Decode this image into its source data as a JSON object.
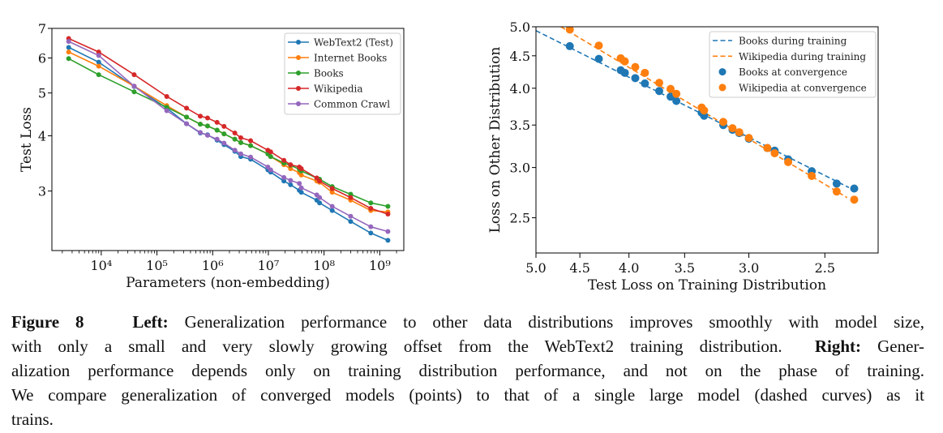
{
  "colors": {
    "blue": "#1f77b4",
    "orange": "#ff7f0e",
    "green": "#2ca02c",
    "red": "#d62728",
    "purple": "#9467bd"
  },
  "chart_data": [
    {
      "type": "line",
      "xlabel": "Parameters (non-embedding)",
      "ylabel": "Test Loss",
      "xscale": "log",
      "yscale": "log",
      "xlim": [
        1300,
        2700000000.0
      ],
      "ylim": [
        2.2,
        7.0
      ],
      "xticks": [
        10000.0,
        100000.0,
        1000000.0,
        10000000.0,
        100000000.0,
        1000000000.0
      ],
      "xtick_labels": [
        "10⁴",
        "10⁵",
        "10⁶",
        "10⁷",
        "10⁸",
        "10⁹"
      ],
      "yticks": [
        3,
        4,
        5,
        6,
        7
      ],
      "ytick_labels": [
        "3",
        "4",
        "5",
        "6",
        "7"
      ],
      "grid": false,
      "legend": "top-right",
      "markers": true,
      "x": [
        2600.0,
        9000.0,
        39000.0,
        150000.0,
        340000.0,
        600000.0,
        810000.0,
        1200000.0,
        1600000.0,
        2500000.0,
        3200000.0,
        4800000.0,
        9800000.0,
        11000000.0,
        19000000.0,
        25000000.0,
        36000000.0,
        39000000.0,
        74000000.0,
        83000000.0,
        140000000.0,
        300000000.0,
        690000000.0,
        1400000000.0
      ],
      "series": [
        {
          "name": "WebText2 (Test)",
          "color": "#1f77b4",
          "values": [
            6.34,
            5.87,
            5.17,
            4.62,
            4.26,
            4.06,
            4.02,
            3.91,
            3.82,
            3.69,
            3.59,
            3.54,
            3.35,
            3.31,
            3.16,
            3.1,
            3.01,
            2.98,
            2.86,
            2.82,
            2.71,
            2.56,
            2.41,
            2.32
          ]
        },
        {
          "name": "Internet Books",
          "color": "#ff7f0e",
          "values": [
            6.19,
            5.75,
            5.18,
            4.68,
            4.41,
            4.25,
            4.21,
            4.12,
            4.04,
            3.93,
            3.86,
            3.8,
            3.64,
            3.59,
            3.44,
            3.37,
            3.3,
            3.26,
            3.16,
            3.14,
            2.98,
            2.86,
            2.71,
            2.69
          ]
        },
        {
          "name": "Books",
          "color": "#2ca02c",
          "values": [
            5.98,
            5.5,
            5.03,
            4.64,
            4.41,
            4.25,
            4.21,
            4.12,
            4.04,
            3.93,
            3.86,
            3.8,
            3.64,
            3.59,
            3.47,
            3.43,
            3.36,
            3.33,
            3.21,
            3.19,
            3.07,
            2.95,
            2.82,
            2.77
          ]
        },
        {
          "name": "Wikipedia",
          "color": "#d62728",
          "values": [
            6.64,
            6.19,
            5.5,
            4.91,
            4.62,
            4.43,
            4.39,
            4.29,
            4.2,
            4.06,
            3.96,
            3.9,
            3.71,
            3.68,
            3.52,
            3.44,
            3.4,
            3.37,
            3.21,
            3.16,
            3.04,
            2.9,
            2.74,
            2.66
          ]
        },
        {
          "name": "Common Crawl",
          "color": "#9467bd",
          "values": [
            6.54,
            6.08,
            5.18,
            4.56,
            4.26,
            4.07,
            4.01,
            3.93,
            3.85,
            3.71,
            3.64,
            3.58,
            3.4,
            3.35,
            3.22,
            3.17,
            3.12,
            3.05,
            2.94,
            2.9,
            2.77,
            2.63,
            2.49,
            2.43
          ]
        }
      ]
    },
    {
      "type": "scatter",
      "xlabel": "Test Loss on Training Distribution",
      "ylabel": "Loss on Other Distribution",
      "xscale": "log",
      "yscale": "log",
      "x_reversed": true,
      "xlim": [
        5.0,
        2.2
      ],
      "ylim": [
        2.2,
        5.0
      ],
      "xticks": [
        5.0,
        4.5,
        4.0,
        3.5,
        3.0,
        2.5
      ],
      "xtick_labels": [
        "5.0",
        "4.5",
        "4.0",
        "3.5",
        "3.0",
        "2.5"
      ],
      "yticks": [
        2.5,
        3.0,
        3.5,
        4.0,
        4.5,
        5.0
      ],
      "ytick_labels": [
        "2.5",
        "3.0",
        "3.5",
        "4.0",
        "4.5",
        "5.0"
      ],
      "grid": false,
      "legend": "top-right",
      "lines": [
        {
          "name": "Books during training",
          "color": "#1f77b4",
          "style": "dashed",
          "x": [
            5.0,
            2.36
          ],
          "y": [
            4.93,
            2.79
          ]
        },
        {
          "name": "Wikipedia during training",
          "color": "#ff7f0e",
          "style": "dashed",
          "x": [
            4.71,
            2.37
          ],
          "y": [
            5.0,
            2.69
          ]
        }
      ],
      "x": [
        4.61,
        4.3,
        4.08,
        4.04,
        3.94,
        3.85,
        3.72,
        3.62,
        3.57,
        3.36,
        3.34,
        3.19,
        3.12,
        3.07,
        3.0,
        2.87,
        2.82,
        2.73,
        2.58,
        2.43,
        2.33
      ],
      "series": [
        {
          "name": "Books at convergence",
          "color": "#1f77b4",
          "values": [
            4.66,
            4.45,
            4.27,
            4.23,
            4.15,
            4.07,
            3.96,
            3.88,
            3.82,
            3.66,
            3.62,
            3.5,
            3.44,
            3.4,
            3.33,
            3.22,
            3.19,
            3.09,
            2.96,
            2.83,
            2.78
          ]
        },
        {
          "name": "Wikipedia at convergence",
          "color": "#ff7f0e",
          "values": [
            4.95,
            4.67,
            4.46,
            4.41,
            4.32,
            4.23,
            4.08,
            3.99,
            3.92,
            3.73,
            3.69,
            3.54,
            3.46,
            3.41,
            3.34,
            3.22,
            3.16,
            3.06,
            2.91,
            2.75,
            2.67
          ]
        }
      ]
    }
  ],
  "caption": {
    "figure_label": "Figure 8",
    "left_label": "Left:",
    "line1": "Generalization performance to other data distributions improves smoothly with model size,",
    "line2": "with only a small and very slowly growing offset from the WebText2 training distribution.",
    "right_label": "Right:",
    "line2_end": "Gener-",
    "line3": "alization performance depends only on training distribution performance, and not on the phase of training.",
    "line4": "We compare generalization of converged models (points) to that of a single large model (dashed curves) as it",
    "line5": "trains."
  }
}
